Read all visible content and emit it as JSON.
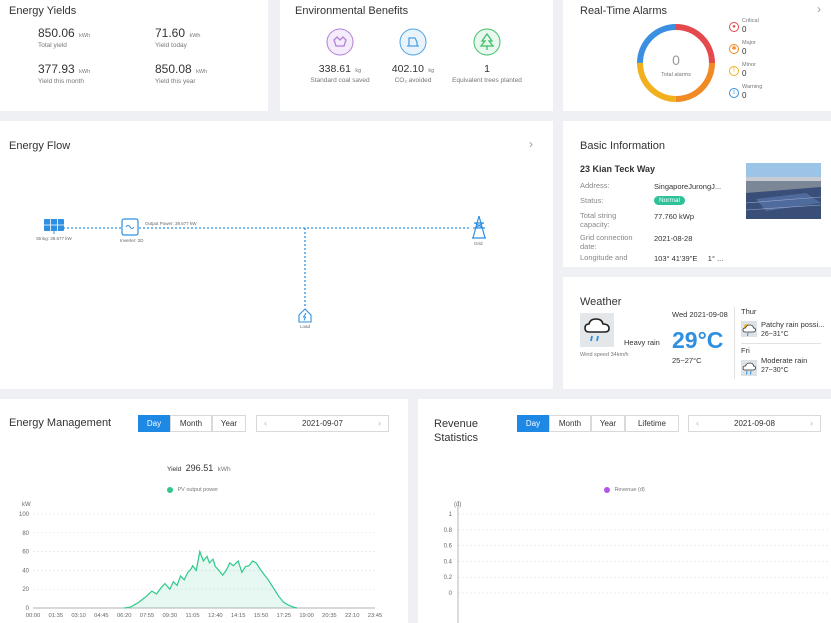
{
  "yields": {
    "title": "Energy Yields",
    "items": [
      {
        "value": "850.06",
        "unit": "kWh",
        "label": "Total yield"
      },
      {
        "value": "71.60",
        "unit": "kWh",
        "label": "Yield today"
      },
      {
        "value": "377.93",
        "unit": "kWh",
        "label": "Yield this month"
      },
      {
        "value": "850.08",
        "unit": "kWh",
        "label": "Yield this year"
      }
    ]
  },
  "env": {
    "title": "Environmental Benefits",
    "items": [
      {
        "value": "338.61",
        "unit": "kg",
        "label": "Standard coal saved",
        "icon": "coal-icon",
        "color": "#b07fd8"
      },
      {
        "value": "402.10",
        "unit": "kg",
        "label": "CO₂ avoided",
        "icon": "co2-icon",
        "color": "#4aa3e0"
      },
      {
        "value": "1",
        "unit": "",
        "label": "Equivalent trees planted",
        "icon": "tree-icon",
        "color": "#3cbf6a"
      }
    ]
  },
  "alarms": {
    "title": "Real-Time Alarms",
    "total": "0",
    "total_label": "Total alarms",
    "items": [
      {
        "label": "Critical",
        "count": "0",
        "color": "#e5484d"
      },
      {
        "label": "Major",
        "count": "0",
        "color": "#f08a24"
      },
      {
        "label": "Minor",
        "count": "0",
        "color": "#f2b01e"
      },
      {
        "label": "Warning",
        "count": "0",
        "color": "#3b8fe0"
      }
    ]
  },
  "flow": {
    "title": "Energy Flow",
    "string_label": "String: 39.677 kW",
    "inverter_label": "Inverter: 2D",
    "output_label": "Output Power: 39.677 kW",
    "grid_label": "Grid",
    "load_label": "Load"
  },
  "basic": {
    "title": "Basic Information",
    "name": "23 Kian Teck Way",
    "address_label": "Address:",
    "address": "SingaporeJurongJ...",
    "status_label": "Status:",
    "status": "Normal",
    "capacity_label": "Total string capacity:",
    "capacity": "77.760 kWp",
    "grid_date_label": "Grid connection date:",
    "grid_date": "2021-08-28",
    "lonlat_label": "Longitude and latitude:",
    "lonlat": "103° 41'39\"E     1° ..."
  },
  "weather": {
    "title": "Weather",
    "today_date": "Wed  2021-09-08",
    "condition": "Heavy rain",
    "temp": "29°C",
    "range": "25~27°C",
    "wind": "Wind speed 34km/h",
    "forecast": [
      {
        "day": "Thur",
        "desc": "Patchy rain possi...",
        "range": "26~31°C"
      },
      {
        "day": "Fri",
        "desc": "Moderate rain",
        "range": "27~30°C"
      }
    ]
  },
  "energy_mgmt": {
    "title": "Energy Management",
    "tabs": [
      "Day",
      "Month",
      "Year"
    ],
    "active_tab": "Day",
    "date": "2021-09-07",
    "yield_label": "Yield",
    "yield_value": "296.51",
    "yield_unit": "kWh"
  },
  "revenue": {
    "title": "Revenue Statistics",
    "tabs": [
      "Day",
      "Month",
      "Year",
      "Lifetime"
    ],
    "active_tab": "Day",
    "date": "2021-09-08"
  },
  "chart_data": [
    {
      "type": "area",
      "title": "",
      "ylabel": "kW",
      "ylim": [
        0,
        100
      ],
      "y_ticks": [
        0,
        20,
        40,
        60,
        80,
        100
      ],
      "x_ticks": [
        "00:00",
        "01:35",
        "03:10",
        "04:45",
        "06:20",
        "07:55",
        "09:30",
        "11:05",
        "12:40",
        "14:15",
        "15:50",
        "17:25",
        "19:00",
        "20:35",
        "22:10",
        "23:45"
      ],
      "series": [
        {
          "name": "PV output power",
          "color": "#2fc98a",
          "x": [
            "06:20",
            "06:45",
            "07:00",
            "07:20",
            "07:40",
            "07:55",
            "08:15",
            "08:35",
            "08:55",
            "09:10",
            "09:30",
            "09:45",
            "10:00",
            "10:15",
            "10:30",
            "10:45",
            "11:00",
            "11:05",
            "11:20",
            "11:35",
            "11:50",
            "12:05",
            "12:15",
            "12:30",
            "12:40",
            "12:55",
            "13:10",
            "13:25",
            "13:40",
            "13:55",
            "14:15",
            "14:30",
            "14:45",
            "15:00",
            "15:15",
            "15:30",
            "15:50",
            "16:05",
            "16:20",
            "16:35",
            "16:50",
            "17:05",
            "17:25",
            "17:45",
            "18:05",
            "18:20"
          ],
          "y": [
            0,
            1,
            3,
            6,
            10,
            13,
            18,
            15,
            22,
            26,
            20,
            28,
            24,
            34,
            30,
            38,
            42,
            45,
            40,
            60,
            50,
            55,
            48,
            52,
            44,
            40,
            35,
            40,
            48,
            45,
            50,
            38,
            44,
            45,
            50,
            48,
            40,
            35,
            30,
            24,
            18,
            12,
            6,
            3,
            1,
            0
          ]
        }
      ]
    },
    {
      "type": "bar",
      "title": "",
      "ylabel": "(đ)",
      "ylim": [
        0,
        1
      ],
      "y_ticks": [
        0,
        0.2,
        0.4,
        0.6,
        0.8,
        1
      ],
      "series": [
        {
          "name": "Revenue (đ)",
          "color": "#b455e8",
          "values": []
        }
      ]
    }
  ]
}
